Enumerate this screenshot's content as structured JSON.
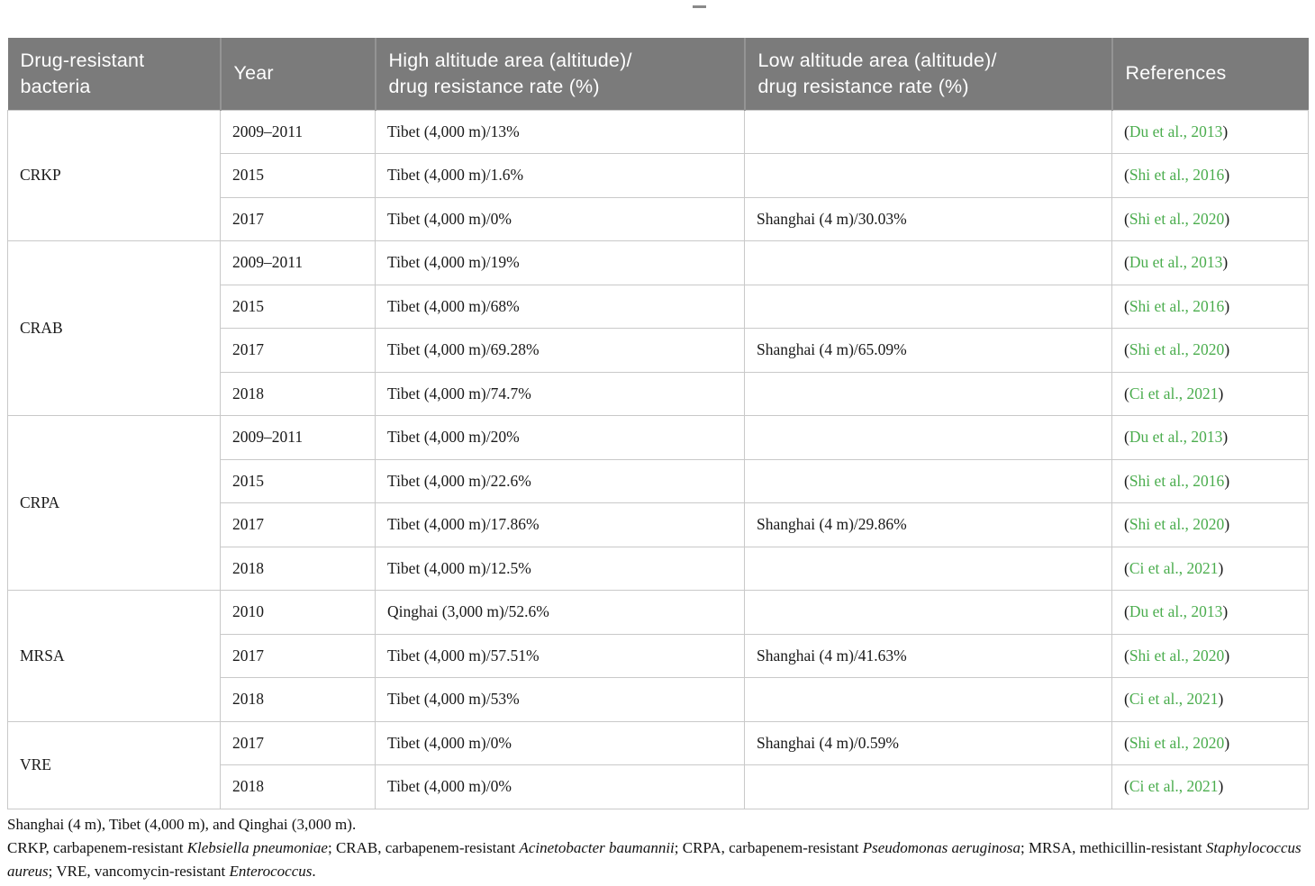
{
  "colors": {
    "header_bg": "#7b7b7b",
    "header_separator": "#949494",
    "body_border": "#c9c9c9",
    "link_green": "#4bad4e",
    "body_text": "#1a1a1a"
  },
  "table": {
    "columns": [
      {
        "key": "bacteria",
        "lines": [
          "Drug-resistant",
          "bacteria"
        ]
      },
      {
        "key": "year",
        "lines": [
          "Year"
        ]
      },
      {
        "key": "high",
        "lines": [
          "High altitude area (altitude)/",
          "drug resistance rate (%)"
        ]
      },
      {
        "key": "low",
        "lines": [
          "Low altitude area (altitude)/",
          "drug resistance rate (%)"
        ]
      },
      {
        "key": "references",
        "lines": [
          "References"
        ]
      }
    ],
    "groups": [
      {
        "bacteria": "CRKP",
        "rows": [
          {
            "year": "2009–2011",
            "high": "Tibet (4,000 m)/13%",
            "low": "",
            "ref": "Du et al., 2013"
          },
          {
            "year": "2015",
            "high": "Tibet (4,000 m)/1.6%",
            "low": "",
            "ref": "Shi et al., 2016"
          },
          {
            "year": "2017",
            "high": "Tibet (4,000 m)/0%",
            "low": "Shanghai (4 m)/30.03%",
            "ref": "Shi et al., 2020"
          }
        ]
      },
      {
        "bacteria": "CRAB",
        "rows": [
          {
            "year": "2009–2011",
            "high": "Tibet (4,000 m)/19%",
            "low": "",
            "ref": "Du et al., 2013"
          },
          {
            "year": "2015",
            "high": "Tibet (4,000 m)/68%",
            "low": "",
            "ref": "Shi et al., 2016"
          },
          {
            "year": "2017",
            "high": "Tibet (4,000 m)/69.28%",
            "low": "Shanghai (4 m)/65.09%",
            "ref": "Shi et al., 2020"
          },
          {
            "year": "2018",
            "high": "Tibet (4,000 m)/74.7%",
            "low": "",
            "ref": "Ci et al., 2021"
          }
        ]
      },
      {
        "bacteria": "CRPA",
        "rows": [
          {
            "year": "2009–2011",
            "high": "Tibet (4,000 m)/20%",
            "low": "",
            "ref": "Du et al., 2013"
          },
          {
            "year": "2015",
            "high": "Tibet (4,000 m)/22.6%",
            "low": "",
            "ref": "Shi et al., 2016"
          },
          {
            "year": "2017",
            "high": "Tibet (4,000 m)/17.86%",
            "low": "Shanghai (4 m)/29.86%",
            "ref": "Shi et al., 2020"
          },
          {
            "year": "2018",
            "high": "Tibet (4,000 m)/12.5%",
            "low": "",
            "ref": "Ci et al., 2021"
          }
        ]
      },
      {
        "bacteria": "MRSA",
        "rows": [
          {
            "year": "2010",
            "high": "Qinghai (3,000 m)/52.6%",
            "low": "",
            "ref": "Du et al., 2013"
          },
          {
            "year": "2017",
            "high": "Tibet (4,000 m)/57.51%",
            "low": "Shanghai (4 m)/41.63%",
            "ref": "Shi et al., 2020"
          },
          {
            "year": "2018",
            "high": "Tibet (4,000 m)/53%",
            "low": "",
            "ref": "Ci et al., 2021"
          }
        ]
      },
      {
        "bacteria": "VRE",
        "rows": [
          {
            "year": "2017",
            "high": "Tibet (4,000 m)/0%",
            "low": "Shanghai (4 m)/0.59%",
            "ref": "Shi et al., 2020"
          },
          {
            "year": "2018",
            "high": "Tibet (4,000 m)/0%",
            "low": "",
            "ref": "Ci et al., 2021"
          }
        ]
      }
    ],
    "reference_open_paren": "(",
    "reference_close_paren": ")"
  },
  "footnotes": {
    "line1": "Shanghai (4 m), Tibet (4,000 m), and Qinghai (3,000 m).",
    "abbreviations": [
      {
        "text": "CRKP, carbapenem-resistant ",
        "italic": false
      },
      {
        "text": "Klebsiella pneumoniae",
        "italic": true
      },
      {
        "text": "; CRAB, carbapenem-resistant ",
        "italic": false
      },
      {
        "text": "Acinetobacter baumannii",
        "italic": true
      },
      {
        "text": "; CRPA, carbapenem-resistant ",
        "italic": false
      },
      {
        "text": "Pseudomonas aeruginosa",
        "italic": true
      },
      {
        "text": "; MRSA, methicillin-resistant ",
        "italic": false
      },
      {
        "text": "Staphylococcus aureus",
        "italic": true
      },
      {
        "text": "; VRE, vancomycin-resistant ",
        "italic": false
      },
      {
        "text": "Enterococcus",
        "italic": true
      },
      {
        "text": ".",
        "italic": false
      }
    ]
  }
}
